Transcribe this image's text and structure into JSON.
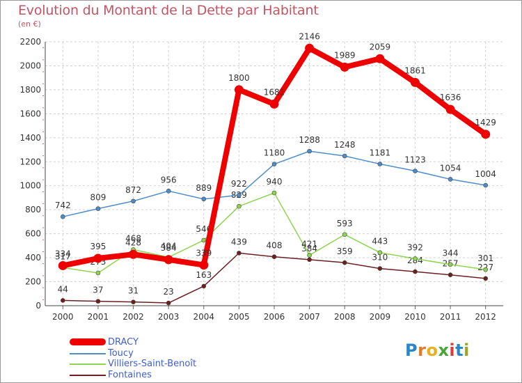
{
  "title": "Evolution du Montant de la Dette par Habitant",
  "subtitle": "(en €)",
  "logo": {
    "letters": [
      "P",
      "r",
      "o",
      "x",
      "i",
      "t",
      "i"
    ],
    "colors": [
      "#2a86c8",
      "#e07a2b",
      "#e8b21f",
      "#4aa53a",
      "#d93d3d",
      "#2a86c8",
      "#9aa52a"
    ]
  },
  "chart_data": {
    "type": "line",
    "x": [
      "2000",
      "2001",
      "2002",
      "2003",
      "2004",
      "2005",
      "2006",
      "2007",
      "2008",
      "2009",
      "2010",
      "2011",
      "2012"
    ],
    "ylim": [
      0,
      2200
    ],
    "yticks": [
      "0",
      "200",
      "400",
      "600",
      "800",
      "1000",
      "1200",
      "1400",
      "1600",
      "1800",
      "2000",
      "2200"
    ],
    "grid": true,
    "legend_position": "bottom-left",
    "series": [
      {
        "name": "DRACY",
        "color": "#ee0000",
        "values": [
          334,
          395,
          428,
          384,
          339,
          1800,
          1681,
          2146,
          1989,
          2059,
          1861,
          1636,
          1429
        ],
        "labels": [
          "334",
          "395",
          "428",
          "384",
          "339",
          "1800",
          "1681",
          "2146",
          "1989",
          "2059",
          "1861",
          "1636",
          "1429"
        ]
      },
      {
        "name": "Toucy",
        "color": "#4f8dc9",
        "values": [
          742,
          809,
          872,
          956,
          889,
          922,
          1180,
          1288,
          1248,
          1181,
          1123,
          1054,
          1004
        ],
        "labels": [
          "742",
          "809",
          "872",
          "956",
          "889",
          "922",
          "1180",
          "1288",
          "1248",
          "1181",
          "1123",
          "1054",
          "1004"
        ]
      },
      {
        "name": "Villiers-Saint-Benoît",
        "color": "#8ed44e",
        "values": [
          317,
          273,
          468,
          404,
          546,
          829,
          940,
          421,
          593,
          443,
          392,
          344,
          301
        ],
        "labels": [
          "317",
          "273",
          "468",
          "404",
          "546",
          "829",
          "940",
          "421",
          "593",
          "443",
          "392",
          "344",
          "301"
        ]
      },
      {
        "name": "Fontaines",
        "color": "#6b1f1f",
        "values": [
          44,
          37,
          31,
          23,
          163,
          439,
          408,
          384,
          359,
          310,
          284,
          257,
          227
        ],
        "labels": [
          "44",
          "37",
          "31",
          "23",
          "163",
          "439",
          "408",
          "384",
          "359",
          "310",
          "284",
          "257",
          "227"
        ]
      }
    ]
  }
}
